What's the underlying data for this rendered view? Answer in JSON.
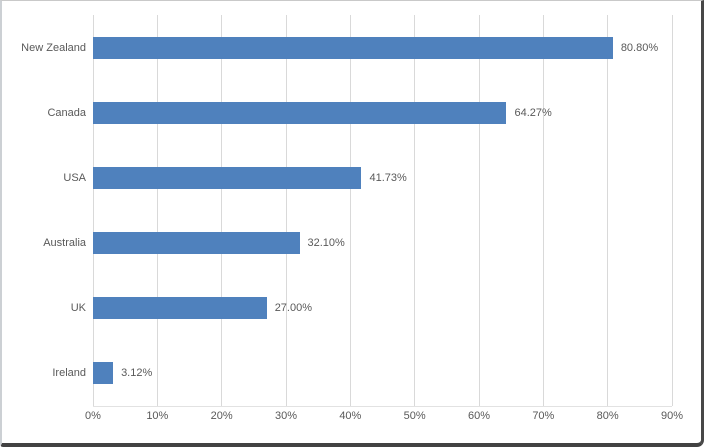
{
  "chart_data": {
    "type": "bar",
    "orientation": "horizontal",
    "title": "",
    "xlabel": "",
    "ylabel": "",
    "categories": [
      "New Zealand",
      "Canada",
      "USA",
      "Australia",
      "UK",
      "Ireland"
    ],
    "values": [
      80.8,
      64.27,
      41.73,
      32.1,
      27.0,
      3.12
    ],
    "data_labels": [
      "80.80%",
      "64.27%",
      "41.73%",
      "32.10%",
      "27.00%",
      "3.12%"
    ],
    "xlim": [
      0,
      90
    ],
    "x_tick_values": [
      0,
      10,
      20,
      30,
      40,
      50,
      60,
      70,
      80,
      90
    ],
    "x_tick_labels": [
      "0%",
      "10%",
      "20%",
      "30%",
      "40%",
      "50%",
      "60%",
      "70%",
      "80%",
      "90%"
    ],
    "grid": "vertical-gridlines-on",
    "legend": "none",
    "colors": {
      "bar_fill": "#4F81BD",
      "gridline": "#D9D9D9",
      "text": "#595959",
      "background": "#FFFFFF"
    }
  }
}
